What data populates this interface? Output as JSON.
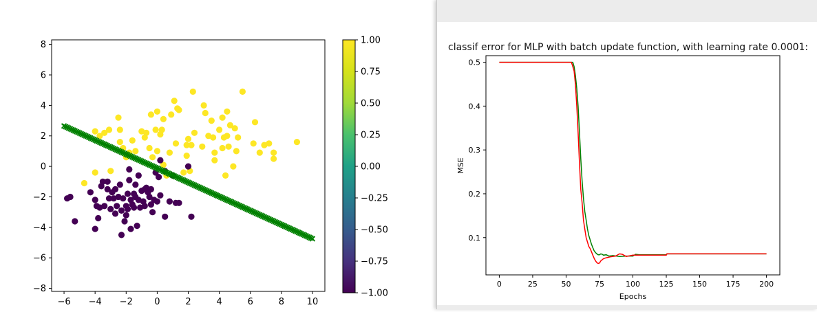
{
  "right_panel": {
    "caption": "classif error for MLP with batch update function, with learning rate 0.0001:"
  },
  "chart_data": [
    {
      "type": "scatter",
      "xlim": [
        -6.8,
        10.8
      ],
      "ylim": [
        -8.2,
        8.3
      ],
      "x_ticks": [
        -6,
        -4,
        -2,
        0,
        2,
        4,
        6,
        8,
        10
      ],
      "y_ticks": [
        -8,
        -6,
        -4,
        -2,
        0,
        2,
        4,
        6,
        8
      ],
      "grid": false,
      "colorbar": {
        "range": [
          -1.0,
          1.0
        ],
        "colormap": "viridis",
        "tick_values": [
          -1.0,
          -0.75,
          -0.5,
          -0.25,
          0.0,
          0.25,
          0.5,
          0.75,
          1.0
        ],
        "tick_labels": [
          "−1.00",
          "−0.75",
          "−0.50",
          "−0.25",
          "0.00",
          "0.25",
          "0.50",
          "0.75",
          "1.00"
        ]
      },
      "series": [
        {
          "class_value": 1.0,
          "color": "#fde725",
          "points": [
            [
              -4.7,
              -1.1
            ],
            [
              -4.0,
              -0.4
            ],
            [
              -4.0,
              2.3
            ],
            [
              -3.7,
              2.0
            ],
            [
              -3.4,
              2.2
            ],
            [
              -3.1,
              2.4
            ],
            [
              -3.0,
              -0.3
            ],
            [
              -2.5,
              3.2
            ],
            [
              -2.4,
              2.4
            ],
            [
              -2.4,
              1.6
            ],
            [
              -2.2,
              1.2
            ],
            [
              -2.0,
              0.6
            ],
            [
              -1.8,
              0.9
            ],
            [
              -1.6,
              1.7
            ],
            [
              -1.4,
              1.0
            ],
            [
              -1.0,
              2.3
            ],
            [
              -0.8,
              1.9
            ],
            [
              -0.7,
              2.2
            ],
            [
              -0.5,
              1.2
            ],
            [
              -0.4,
              3.4
            ],
            [
              -0.3,
              0.6
            ],
            [
              -0.1,
              2.4
            ],
            [
              0.0,
              3.6
            ],
            [
              0.0,
              1.0
            ],
            [
              0.2,
              2.1
            ],
            [
              0.3,
              2.4
            ],
            [
              0.4,
              3.1
            ],
            [
              0.4,
              0.1
            ],
            [
              0.6,
              -0.6
            ],
            [
              0.8,
              0.9
            ],
            [
              0.9,
              3.4
            ],
            [
              1.1,
              4.3
            ],
            [
              1.2,
              1.5
            ],
            [
              1.3,
              3.8
            ],
            [
              1.4,
              3.7
            ],
            [
              1.7,
              -0.4
            ],
            [
              1.9,
              1.4
            ],
            [
              1.9,
              0.7
            ],
            [
              2.0,
              1.8
            ],
            [
              2.1,
              -0.3
            ],
            [
              2.2,
              1.4
            ],
            [
              2.3,
              4.9
            ],
            [
              2.4,
              2.2
            ],
            [
              2.9,
              1.3
            ],
            [
              3.0,
              4.0
            ],
            [
              3.1,
              3.5
            ],
            [
              3.3,
              2.0
            ],
            [
              3.5,
              3.0
            ],
            [
              3.6,
              1.9
            ],
            [
              3.7,
              0.9
            ],
            [
              3.7,
              0.4
            ],
            [
              4.0,
              2.4
            ],
            [
              4.2,
              1.2
            ],
            [
              4.2,
              3.2
            ],
            [
              4.3,
              1.9
            ],
            [
              4.4,
              -0.6
            ],
            [
              4.5,
              2.0
            ],
            [
              4.5,
              3.6
            ],
            [
              4.6,
              1.3
            ],
            [
              4.7,
              2.7
            ],
            [
              4.9,
              0.0
            ],
            [
              5.0,
              2.5
            ],
            [
              5.2,
              1.9
            ],
            [
              5.1,
              1.0
            ],
            [
              5.5,
              4.9
            ],
            [
              6.3,
              2.9
            ],
            [
              6.2,
              1.5
            ],
            [
              6.6,
              0.9
            ],
            [
              6.9,
              1.4
            ],
            [
              7.2,
              1.5
            ],
            [
              7.5,
              0.9
            ],
            [
              7.5,
              0.5
            ],
            [
              9.0,
              1.6
            ]
          ]
        },
        {
          "class_value": -1.0,
          "color": "#440154",
          "points": [
            [
              -5.8,
              -2.1
            ],
            [
              -5.6,
              -2.0
            ],
            [
              -5.3,
              -3.6
            ],
            [
              -4.3,
              -1.7
            ],
            [
              -4.0,
              -2.2
            ],
            [
              -4.0,
              -4.1
            ],
            [
              -3.9,
              -2.6
            ],
            [
              -3.7,
              -2.7
            ],
            [
              -3.8,
              -3.4
            ],
            [
              -3.6,
              -1.3
            ],
            [
              -3.5,
              -1.0
            ],
            [
              -3.4,
              -2.6
            ],
            [
              -3.2,
              -1.5
            ],
            [
              -3.2,
              -1.0
            ],
            [
              -3.1,
              -2.1
            ],
            [
              -3.0,
              -2.8
            ],
            [
              -2.9,
              -1.7
            ],
            [
              -2.8,
              -2.1
            ],
            [
              -2.7,
              -1.5
            ],
            [
              -2.7,
              -3.1
            ],
            [
              -2.6,
              -2.6
            ],
            [
              -2.5,
              -2.0
            ],
            [
              -2.4,
              -1.2
            ],
            [
              -2.3,
              -2.9
            ],
            [
              -2.3,
              -4.5
            ],
            [
              -2.2,
              -2.1
            ],
            [
              -2.1,
              -3.6
            ],
            [
              -2.0,
              -2.6
            ],
            [
              -2.0,
              -3.2
            ],
            [
              -1.9,
              -1.8
            ],
            [
              -1.9,
              -2.8
            ],
            [
              -1.8,
              -0.2
            ],
            [
              -1.8,
              -0.9
            ],
            [
              -1.7,
              -2.2
            ],
            [
              -1.7,
              -4.1
            ],
            [
              -1.6,
              -2.5
            ],
            [
              -1.5,
              -2.7
            ],
            [
              -1.4,
              -2.0
            ],
            [
              -1.4,
              -1.2
            ],
            [
              -1.3,
              -3.9
            ],
            [
              -1.2,
              -0.6
            ],
            [
              -1.2,
              -2.2
            ],
            [
              -1.1,
              -2.7
            ],
            [
              -1.0,
              -1.6
            ],
            [
              -0.9,
              -2.3
            ],
            [
              -0.8,
              -2.6
            ],
            [
              -0.7,
              -1.4
            ],
            [
              -0.6,
              -1.7
            ],
            [
              -0.4,
              -1.5
            ],
            [
              -0.4,
              -2.5
            ],
            [
              -0.3,
              -3.0
            ],
            [
              -0.2,
              -2.2
            ],
            [
              -0.1,
              -0.4
            ],
            [
              0.1,
              -0.7
            ],
            [
              0.2,
              0.4
            ],
            [
              0.2,
              -1.9
            ],
            [
              0.5,
              -0.3
            ],
            [
              0.5,
              -3.3
            ],
            [
              0.8,
              -2.3
            ],
            [
              1.0,
              -0.6
            ],
            [
              1.2,
              -2.4
            ],
            [
              1.4,
              -2.4
            ],
            [
              2.0,
              0.0
            ],
            [
              2.2,
              -3.3
            ],
            [
              0.0,
              -2.3
            ],
            [
              -0.8,
              -1.5
            ],
            [
              -0.5,
              -2.0
            ],
            [
              -1.5,
              -1.8
            ]
          ]
        }
      ],
      "boundary_line": {
        "color": "#008000",
        "x": [
          -6.0,
          10.0
        ],
        "y": [
          2.65,
          -4.75
        ]
      }
    },
    {
      "type": "line",
      "xlabel": "Epochs",
      "ylabel": "MSE",
      "xlim": [
        -10,
        210
      ],
      "ylim": [
        0.015,
        0.515
      ],
      "x_ticks": [
        0,
        25,
        50,
        75,
        100,
        125,
        150,
        175,
        200
      ],
      "y_ticks": [
        0.1,
        0.2,
        0.3,
        0.4,
        0.5
      ],
      "grid": false,
      "series": [
        {
          "color": "#008000",
          "x": [
            0,
            55,
            56,
            57,
            58,
            59,
            60,
            61,
            62,
            63,
            64,
            65,
            66,
            67,
            68,
            69,
            70,
            71,
            72,
            73,
            74,
            75,
            76,
            77,
            78,
            80,
            82,
            85,
            90,
            95,
            100,
            102,
            105,
            125,
            125.5,
            200
          ],
          "y": [
            0.5,
            0.5,
            0.49,
            0.47,
            0.44,
            0.4,
            0.34,
            0.28,
            0.23,
            0.19,
            0.16,
            0.14,
            0.12,
            0.105,
            0.095,
            0.085,
            0.077,
            0.07,
            0.066,
            0.063,
            0.061,
            0.061,
            0.063,
            0.062,
            0.06,
            0.061,
            0.058,
            0.059,
            0.057,
            0.058,
            0.058,
            0.062,
            0.061,
            0.061,
            0.063,
            0.063
          ]
        },
        {
          "color": "#ff0000",
          "x": [
            0,
            54,
            55,
            56,
            57,
            58,
            59,
            60,
            61,
            62,
            63,
            64,
            65,
            66,
            67,
            68,
            69,
            70,
            71,
            72,
            73,
            74,
            75,
            76,
            78,
            80,
            83,
            87,
            90,
            92,
            95,
            100,
            110,
            125,
            125.5,
            200
          ],
          "y": [
            0.5,
            0.5,
            0.49,
            0.48,
            0.45,
            0.4,
            0.34,
            0.27,
            0.21,
            0.18,
            0.14,
            0.12,
            0.1,
            0.09,
            0.08,
            0.075,
            0.068,
            0.06,
            0.053,
            0.047,
            0.043,
            0.041,
            0.042,
            0.047,
            0.052,
            0.054,
            0.056,
            0.058,
            0.063,
            0.062,
            0.057,
            0.06,
            0.06,
            0.06,
            0.063,
            0.063
          ]
        }
      ]
    }
  ]
}
